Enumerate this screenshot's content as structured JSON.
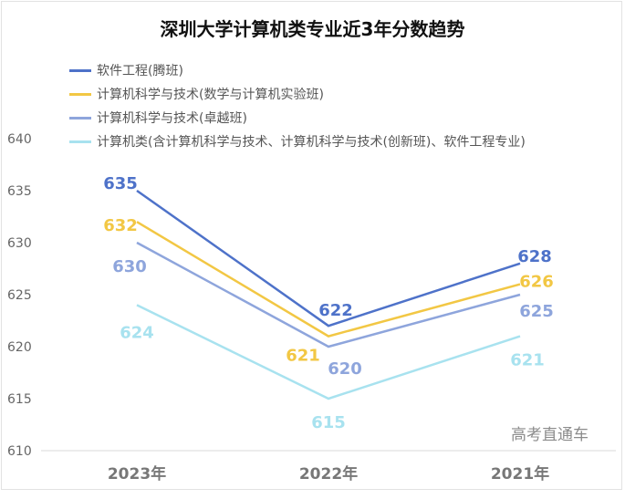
{
  "chart_data": {
    "type": "line",
    "title": "深圳大学计算机类专业近3年分数趋势",
    "categories": [
      "2023年",
      "2022年",
      "2021年"
    ],
    "ylim": [
      610,
      640
    ],
    "yticks": [
      610,
      615,
      620,
      625,
      630,
      635,
      640
    ],
    "grid": false,
    "legend_position": "top-left",
    "series": [
      {
        "name": "软件工程(腾班)",
        "values": [
          635,
          622,
          628
        ],
        "color": "#4e72c9"
      },
      {
        "name": "计算机科学与技术(数学与计算机实验班)",
        "values": [
          632,
          621,
          626
        ],
        "color": "#f2c744"
      },
      {
        "name": "计算机科学与技术(卓越班)",
        "values": [
          630,
          620,
          625
        ],
        "color": "#8ea5dc"
      },
      {
        "name": "计算机类(含计算机科学与技术、计算机科学与技术(创新班)、软件工程专业)",
        "values": [
          624,
          615,
          621
        ],
        "color": "#a8e2ef"
      }
    ]
  },
  "watermark": "高考直通车"
}
